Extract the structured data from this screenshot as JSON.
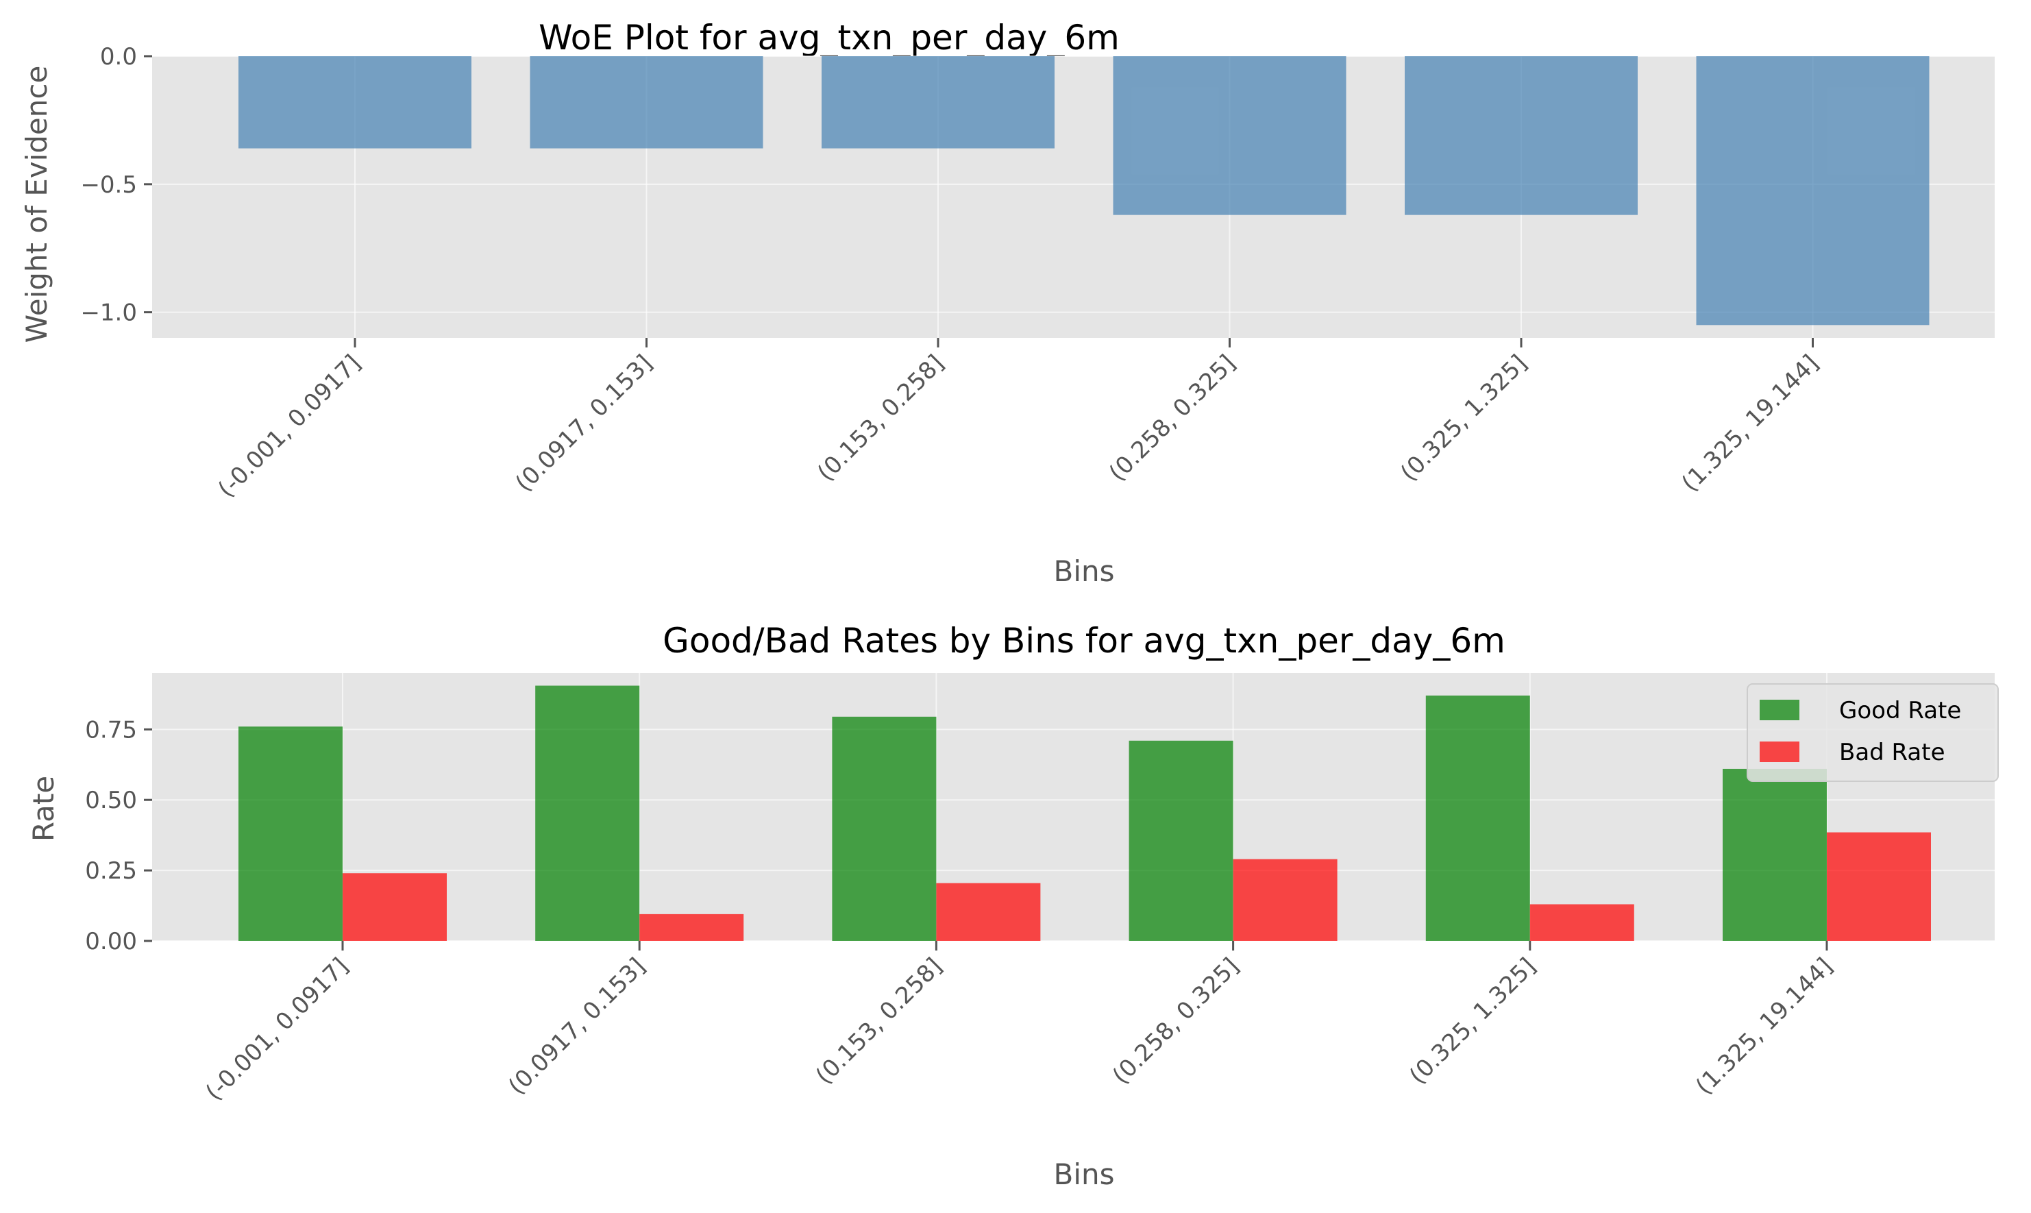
{
  "chart_data": [
    {
      "type": "bar",
      "title": "WoE Plot for avg_txn_per_day_6m",
      "xlabel": "Bins",
      "ylabel": "Weight of Evidence",
      "categories": [
        "(-0.001, 0.0917]",
        "(0.0917, 0.153]",
        "(0.153, 0.258]",
        "(0.258, 0.325]",
        "(0.325, 1.325]",
        "(1.325, 19.144]"
      ],
      "series": [
        {
          "values": [
            -0.36,
            -0.36,
            -0.36,
            -0.62,
            -0.62,
            -1.05
          ],
          "color": "#4682b4"
        }
      ],
      "ylim": [
        -1.1,
        0.0
      ],
      "yticks": [
        0.0,
        -0.5,
        -1.0
      ],
      "ytick_labels": [
        "0.0",
        "−0.5",
        "−1.0"
      ],
      "grid": true,
      "style": "ggplot"
    },
    {
      "type": "bar",
      "title": "Good/Bad Rates by Bins for avg_txn_per_day_6m",
      "xlabel": "Bins",
      "ylabel": "Rate",
      "categories": [
        "(-0.001, 0.0917]",
        "(0.0917, 0.153]",
        "(0.153, 0.258]",
        "(0.258, 0.325]",
        "(0.325, 1.325]",
        "(1.325, 19.144]"
      ],
      "series": [
        {
          "name": "Good Rate",
          "values": [
            0.76,
            0.905,
            0.795,
            0.71,
            0.87,
            0.61
          ],
          "color": "#008000"
        },
        {
          "name": "Bad Rate",
          "values": [
            0.24,
            0.095,
            0.205,
            0.29,
            0.13,
            0.385
          ],
          "color": "#ff0000"
        }
      ],
      "ylim": [
        0.0,
        0.95
      ],
      "yticks": [
        0.0,
        0.25,
        0.5,
        0.75
      ],
      "ytick_labels": [
        "0.00",
        "0.25",
        "0.50",
        "0.75"
      ],
      "legend": "top-right",
      "grid": true,
      "style": "ggplot"
    }
  ]
}
